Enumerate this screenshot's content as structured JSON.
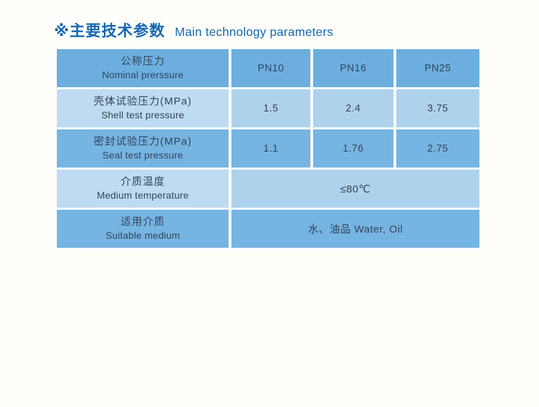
{
  "title": {
    "zh": "※主要技术参数",
    "en": "Main technology parameters"
  },
  "colors": {
    "row_header": "#6cafdf",
    "row_medium": "#76b4e2",
    "row_light_label": "#bfdbf1",
    "row_light_value": "#aed2ec",
    "text_color": "#31455c",
    "title_color": "#1467b1",
    "separator": "#ffffff",
    "page_bg": "#fffefb"
  },
  "table": {
    "header": {
      "label_zh": "公称压力",
      "label_en": "Nominal prerssure",
      "columns": [
        "PN10",
        "PN16",
        "PN25"
      ]
    },
    "rows": [
      {
        "label_zh": "壳体试验压力(MPa)",
        "label_en": "Shell test pressure",
        "values": [
          "1.5",
          "2.4",
          "3.75"
        ]
      },
      {
        "label_zh": "密封试验压力(MPa)",
        "label_en": "Seal test pressure",
        "values": [
          "1.1",
          "1.76",
          "2.75"
        ]
      },
      {
        "label_zh": "介质温度",
        "label_en": "Medium temperature",
        "merged_value": "≤80℃"
      },
      {
        "label_zh": "适用介质",
        "label_en": "Suitable medium",
        "merged_value": "水、油品 Water, Oil"
      }
    ]
  },
  "chart_data": {
    "type": "table",
    "title": "主要技术参数 Main technology parameters",
    "columns": [
      "公称压力 Nominal prerssure",
      "PN10",
      "PN16",
      "PN25"
    ],
    "rows": [
      [
        "壳体试验压力(MPa) Shell test pressure",
        "1.5",
        "2.4",
        "3.75"
      ],
      [
        "密封试验压力(MPa) Seal test pressure",
        "1.1",
        "1.76",
        "2.75"
      ],
      [
        "介质温度 Medium temperature",
        "≤80℃",
        "≤80℃",
        "≤80℃"
      ],
      [
        "适用介质 Suitable medium",
        "水、油品 Water, Oil",
        "水、油品 Water, Oil",
        "水、油品 Water, Oil"
      ]
    ]
  }
}
